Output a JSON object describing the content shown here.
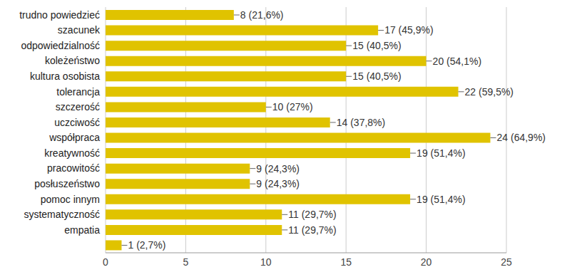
{
  "chart_data": {
    "type": "bar",
    "orientation": "horizontal",
    "categories": [
      "trudno powiedzieć",
      "szacunek",
      "odpowiedzialność",
      "koleżeństwo",
      "kultura osobista",
      "tolerancja",
      "szczerość",
      "uczciwość",
      "współpraca",
      "kreatywność",
      "pracowitość",
      "posłuszeństwo",
      "pomoc innym",
      "systematyczność",
      "empatia",
      null
    ],
    "values": [
      8,
      17,
      15,
      20,
      15,
      22,
      10,
      14,
      24,
      19,
      9,
      9,
      19,
      11,
      11,
      1
    ],
    "value_labels": [
      "8 (21,6%)",
      "17 (45,9%)",
      "15 (40,5%)",
      "20 (54,1%)",
      "15 (40,5%)",
      "22 (59,5%)",
      "10 (27%)",
      "14 (37,8%)",
      "24 (64,9%)",
      "19 (51,4%)",
      "9 (24,3%)",
      "9 (24,3%)",
      "19 (51,4%)",
      "11 (29,7%)",
      "11 (29,7%)",
      "1 (2,7%)"
    ],
    "color": "#e0c300",
    "xlim": [
      0,
      25
    ],
    "xticks": [
      0,
      5,
      10,
      15,
      20,
      25
    ],
    "grid": true,
    "data_labels": true
  }
}
